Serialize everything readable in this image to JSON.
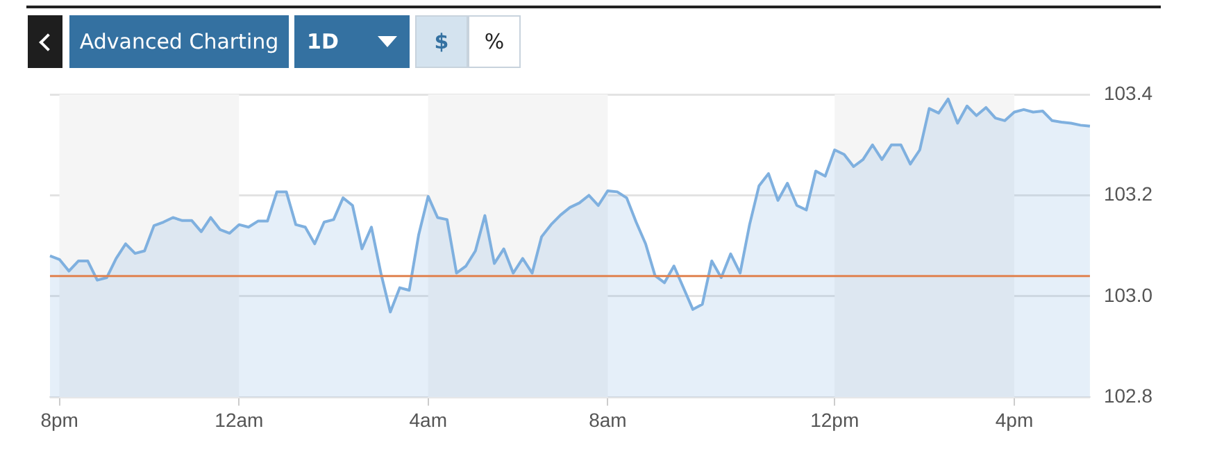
{
  "chart_data": {
    "type": "area",
    "annotations": [
      "Advanced Charting",
      "1D",
      "$",
      "%"
    ],
    "categories": [
      null,
      "8pm",
      null,
      null,
      null,
      null,
      null,
      null,
      null,
      null,
      null,
      null,
      null,
      null,
      null,
      null,
      null,
      null,
      null,
      null,
      "12am",
      null,
      null,
      null,
      null,
      null,
      null,
      null,
      null,
      null,
      null,
      null,
      null,
      null,
      null,
      null,
      null,
      null,
      null,
      null,
      "4am",
      null,
      null,
      null,
      null,
      null,
      null,
      null,
      null,
      null,
      null,
      null,
      null,
      null,
      null,
      null,
      null,
      null,
      null,
      "8am",
      null,
      null,
      null,
      null,
      null,
      null,
      null,
      null,
      null,
      null,
      null,
      null,
      null,
      null,
      null,
      null,
      null,
      null,
      null,
      null,
      null,
      null,
      null,
      "12pm",
      null,
      null,
      null,
      null,
      null,
      null,
      null,
      null,
      null,
      null,
      null,
      null,
      null,
      null,
      null,
      null,
      null,
      null,
      "4pm",
      null,
      null,
      null,
      null,
      null,
      null,
      null,
      null
    ],
    "series": [
      {
        "color": "#7fb0df",
        "values": [
          103.08,
          103.073,
          103.05,
          103.07,
          103.07,
          103.032,
          103.037,
          103.075,
          103.104,
          103.085,
          103.09,
          103.14,
          103.147,
          103.156,
          103.15,
          103.15,
          103.128,
          103.156,
          103.132,
          103.125,
          103.142,
          103.137,
          103.149,
          103.149,
          103.207,
          103.207,
          103.142,
          103.137,
          103.104,
          103.147,
          103.152,
          103.195,
          103.18,
          103.094,
          103.137,
          103.046,
          102.969,
          103.017,
          103.012,
          103.122,
          103.198,
          103.156,
          103.152,
          103.046,
          103.06,
          103.09,
          103.16,
          103.065,
          103.094,
          103.046,
          103.075,
          103.046,
          103.118,
          103.142,
          103.161,
          103.176,
          103.185,
          103.2,
          103.18,
          103.209,
          103.207,
          103.195,
          103.147,
          103.104,
          103.041,
          103.027,
          103.06,
          103.017,
          102.974,
          102.984,
          103.07,
          103.037,
          103.084,
          103.046,
          103.142,
          103.219,
          103.243,
          103.19,
          103.224,
          103.18,
          103.171,
          103.248,
          103.238,
          103.29,
          103.281,
          103.257,
          103.271,
          103.3,
          103.271,
          103.3,
          103.3,
          103.262,
          103.29,
          103.372,
          103.363,
          103.391,
          103.343,
          103.377,
          103.358,
          103.374,
          103.353,
          103.348,
          103.365,
          103.37,
          103.365,
          103.367,
          103.348,
          103.345,
          103.343,
          103.339,
          103.337
        ]
      }
    ],
    "ylim": [
      102.8,
      103.4
    ],
    "yticks": [
      {
        "value": 102.8,
        "label": "102.8"
      },
      {
        "value": 103.0,
        "label": "103.0"
      },
      {
        "value": 103.2,
        "label": "103.2"
      },
      {
        "value": 103.4,
        "label": "103.4"
      }
    ],
    "ref_lines": [
      {
        "axis": "y",
        "value": 103.04,
        "color": "#e0824f"
      }
    ],
    "bands": [
      {
        "axis": "x",
        "from": "8pm",
        "to": "12am",
        "color": "#f5f5f5"
      },
      {
        "axis": "x",
        "from": "4am",
        "to": "8am",
        "color": "#f5f5f5"
      },
      {
        "axis": "x",
        "from": "12pm",
        "to": "4pm",
        "color": "#f5f5f5"
      }
    ],
    "grid": "y",
    "marker": "none",
    "line_style": "solid"
  }
}
